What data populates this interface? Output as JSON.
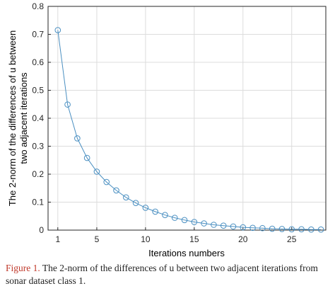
{
  "chart_data": {
    "type": "line",
    "xlabel": "Iterations numbers",
    "ylabel": "The 2-norm of the differences of u between two adjacent iterations",
    "xlim": [
      0,
      28.5
    ],
    "ylim": [
      0,
      0.8
    ],
    "x_ticks": [
      1,
      5,
      10,
      15,
      20,
      25
    ],
    "y_ticks": [
      0,
      0.1,
      0.2,
      0.3,
      0.4,
      0.5,
      0.6,
      0.7,
      0.8
    ],
    "grid": true,
    "marker": "circle",
    "series": [
      {
        "x": [
          1,
          2,
          3,
          4,
          5,
          6,
          7,
          8,
          9,
          10,
          11,
          12,
          13,
          14,
          15,
          16,
          17,
          18,
          19,
          20,
          21,
          22,
          23,
          24,
          25,
          26,
          27,
          28
        ],
        "values": [
          0.715,
          0.449,
          0.328,
          0.258,
          0.209,
          0.172,
          0.142,
          0.117,
          0.097,
          0.08,
          0.066,
          0.054,
          0.044,
          0.036,
          0.029,
          0.024,
          0.019,
          0.016,
          0.013,
          0.01,
          0.008,
          0.007,
          0.005,
          0.004,
          0.003,
          0.003,
          0.002,
          0.002
        ]
      }
    ],
    "color": "#4a8fc1"
  },
  "caption": {
    "figure_label": "Figure 1.",
    "text": " The 2-norm of the differences of u between two adjacent iterations from sonar dataset class 1."
  }
}
